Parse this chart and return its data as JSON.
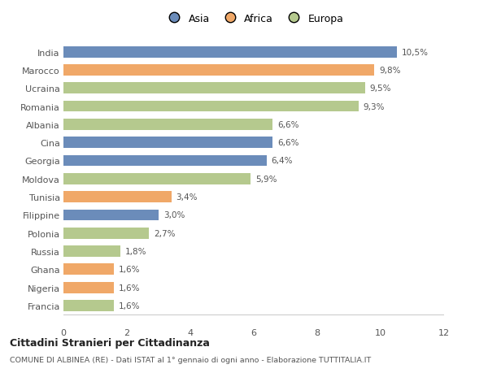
{
  "categories": [
    "India",
    "Marocco",
    "Ucraina",
    "Romania",
    "Albania",
    "Cina",
    "Georgia",
    "Moldova",
    "Tunisia",
    "Filippine",
    "Polonia",
    "Russia",
    "Ghana",
    "Nigeria",
    "Francia"
  ],
  "values": [
    10.5,
    9.8,
    9.5,
    9.3,
    6.6,
    6.6,
    6.4,
    5.9,
    3.4,
    3.0,
    2.7,
    1.8,
    1.6,
    1.6,
    1.6
  ],
  "labels": [
    "10,5%",
    "9,8%",
    "9,5%",
    "9,3%",
    "6,6%",
    "6,6%",
    "6,4%",
    "5,9%",
    "3,4%",
    "3,0%",
    "2,7%",
    "1,8%",
    "1,6%",
    "1,6%",
    "1,6%"
  ],
  "continents": [
    "Asia",
    "Africa",
    "Europa",
    "Europa",
    "Europa",
    "Asia",
    "Asia",
    "Europa",
    "Africa",
    "Asia",
    "Europa",
    "Europa",
    "Africa",
    "Africa",
    "Europa"
  ],
  "colors": {
    "Asia": "#6b8cba",
    "Africa": "#f0a868",
    "Europa": "#b5c98e"
  },
  "legend_labels": [
    "Asia",
    "Africa",
    "Europa"
  ],
  "title": "Cittadini Stranieri per Cittadinanza",
  "subtitle": "COMUNE DI ALBINEA (RE) - Dati ISTAT al 1° gennaio di ogni anno - Elaborazione TUTTITALIA.IT",
  "xlim": [
    0,
    12
  ],
  "xticks": [
    0,
    2,
    4,
    6,
    8,
    10,
    12
  ],
  "background_color": "#ffffff",
  "bar_height": 0.62
}
